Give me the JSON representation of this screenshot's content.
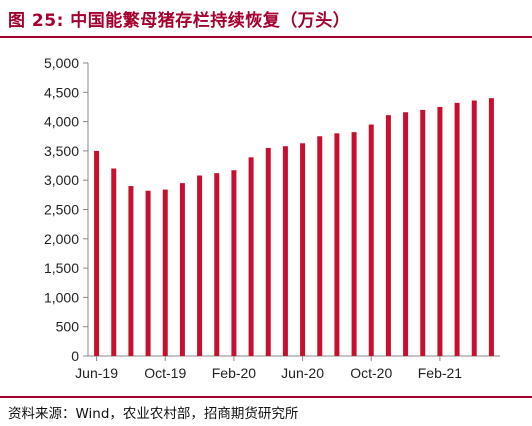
{
  "header": {
    "title": "图 25:  中国能繁母猪存栏持续恢复（万头）"
  },
  "footer": {
    "source": "资料来源：Wind，农业农村部，招商期货研究所"
  },
  "colors": {
    "accent": "#a5002d",
    "bar": "#c8102e",
    "axis": "#888888",
    "text": "#222222"
  },
  "chart_data": {
    "type": "bar",
    "title": "中国能繁母猪存栏持续恢复（万头）",
    "xlabel": "",
    "ylabel": "",
    "ylim": [
      0,
      5000
    ],
    "yticks": [
      0,
      500,
      1000,
      1500,
      2000,
      2500,
      3000,
      3500,
      4000,
      4500,
      5000
    ],
    "ytick_labels": [
      "0",
      "500",
      "1,000",
      "1,500",
      "2,000",
      "2,500",
      "3,000",
      "3,500",
      "4,000",
      "4,500",
      "5,000"
    ],
    "xtick_labels": [
      "Jun-19",
      "Oct-19",
      "Feb-20",
      "Jun-20",
      "Oct-20",
      "Feb-21"
    ],
    "xtick_positions": [
      0,
      4,
      8,
      12,
      16,
      20
    ],
    "categories": [
      "Jun-19",
      "Jul-19",
      "Aug-19",
      "Sep-19",
      "Oct-19",
      "Nov-19",
      "Dec-19",
      "Jan-20",
      "Feb-20",
      "Mar-20",
      "Apr-20",
      "May-20",
      "Jun-20",
      "Jul-20",
      "Aug-20",
      "Sep-20",
      "Oct-20",
      "Nov-20",
      "Dec-20",
      "Jan-21",
      "Feb-21",
      "Mar-21",
      "Apr-21",
      "May-21"
    ],
    "values": [
      3500,
      3200,
      2900,
      2820,
      2840,
      2950,
      3080,
      3120,
      3170,
      3390,
      3550,
      3580,
      3630,
      3750,
      3800,
      3820,
      3950,
      4110,
      4160,
      4200,
      4250,
      4320,
      4360,
      4400
    ],
    "grid": false,
    "legend": "none"
  }
}
